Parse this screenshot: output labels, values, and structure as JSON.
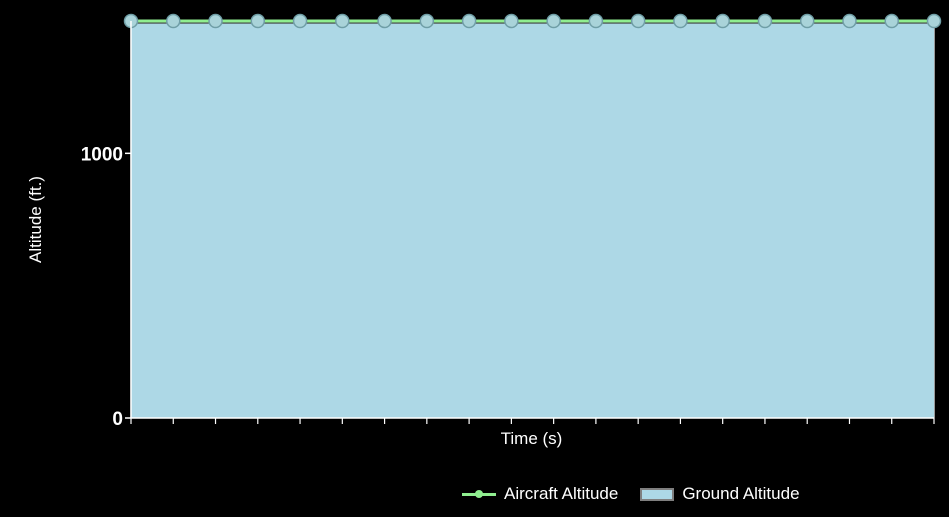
{
  "chart_data": {
    "type": "area",
    "title": "",
    "xlabel": "Time (s)",
    "ylabel": "Altitude (ft.)",
    "ylim": [
      0,
      1500
    ],
    "y_ticks": [
      0,
      1000
    ],
    "x_tick_count": 20,
    "grid": true,
    "legend_position": "bottom-right",
    "series": [
      {
        "name": "Aircraft Altitude",
        "kind": "line",
        "color": "#90ee90",
        "marker_color": "#a9d3d9",
        "values": [
          1500,
          1500,
          1500,
          1500,
          1500,
          1500,
          1500,
          1500,
          1500,
          1500,
          1500,
          1500,
          1500,
          1500,
          1500,
          1500,
          1500,
          1500,
          1500,
          1500
        ]
      },
      {
        "name": "Ground Altitude",
        "kind": "area",
        "color": "#add8e6",
        "values": [
          1490,
          1490,
          1490,
          1490,
          1490,
          1490,
          1490,
          1490,
          1490,
          1490,
          1490,
          1490,
          1490,
          1490,
          1490,
          1490,
          1490,
          1490,
          1490,
          1490
        ]
      }
    ],
    "colors": {
      "background": "#000000",
      "plot_background": "#404040",
      "grid": "#ffffff",
      "axis": "#ffffff",
      "text": "#ffffff"
    }
  }
}
